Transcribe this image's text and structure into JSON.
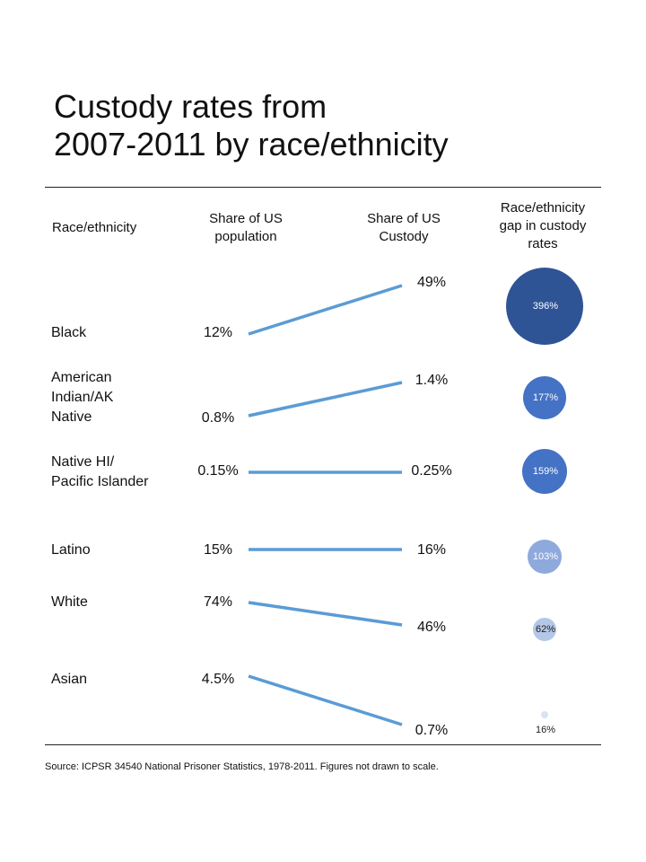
{
  "title_line1": "Custody rates from",
  "title_line2": "2007-2011 by race/ethnicity",
  "headers": {
    "race": "Race/ethnicity",
    "pop_line1": "Share of US",
    "pop_line2": "population",
    "cust_line1": "Share of US",
    "cust_line2": "Custody",
    "gap_line1": "Race/ethnicity",
    "gap_line2": "gap in custody",
    "gap_line3": "rates"
  },
  "source": "Source:  ICPSR 34540 National Prisoner Statistics, 1978-2011. Figures not drawn to scale.",
  "colors": {
    "line": "#5B9BD5",
    "bubble_dark": "#2F5496",
    "bubble_mid": "#4472C4",
    "bubble_light": "#8EA9DB",
    "bubble_pale": "#B4C7E7",
    "bubble_faint": "#D9E2F3"
  },
  "chart_data": {
    "type": "slope",
    "title": "Custody rates from 2007-2011 by race/ethnicity",
    "columns": [
      "Share of US population",
      "Share of US Custody",
      "Race/ethnicity gap in custody rates"
    ],
    "rows": [
      {
        "group_lines": [
          "Black"
        ],
        "pop_share": 12,
        "pop_label": "12%",
        "custody_share": 49,
        "custody_label": "49%",
        "gap": 396,
        "gap_label": "396%"
      },
      {
        "group_lines": [
          "American",
          "Indian/AK",
          "Native"
        ],
        "pop_share": 0.8,
        "pop_label": "0.8%",
        "custody_share": 1.4,
        "custody_label": "1.4%",
        "gap": 177,
        "gap_label": "177%"
      },
      {
        "group_lines": [
          "Native HI/",
          "Pacific Islander"
        ],
        "pop_share": 0.15,
        "pop_label": "0.15%",
        "custody_share": 0.25,
        "custody_label": "0.25%",
        "gap": 159,
        "gap_label": "159%"
      },
      {
        "group_lines": [
          "Latino"
        ],
        "pop_share": 15,
        "pop_label": "15%",
        "custody_share": 16,
        "custody_label": "16%",
        "gap": 103,
        "gap_label": "103%"
      },
      {
        "group_lines": [
          "White"
        ],
        "pop_share": 74,
        "pop_label": "74%",
        "custody_share": 46,
        "custody_label": "46%",
        "gap": 62,
        "gap_label": "62%"
      },
      {
        "group_lines": [
          "Asian"
        ],
        "pop_share": 4.5,
        "pop_label": "4.5%",
        "custody_share": 0.7,
        "custody_label": "0.7%",
        "gap": 16,
        "gap_label": "16%"
      }
    ]
  }
}
